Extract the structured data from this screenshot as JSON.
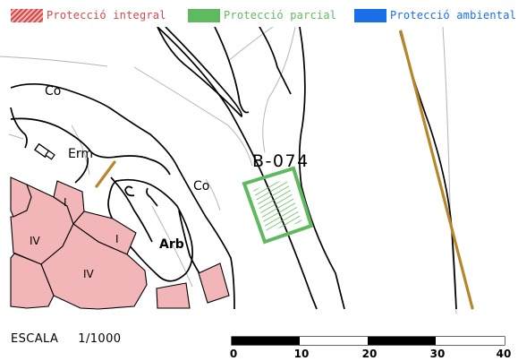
{
  "legend": {
    "items": [
      {
        "label": "Protecció integral",
        "color": "#d04a4a"
      },
      {
        "label": "Protecció parcial",
        "color": "#5fba5f"
      },
      {
        "label": "Protecció ambiental",
        "color": "#1a6ee8"
      }
    ]
  },
  "map": {
    "labels": {
      "co_top": "Co",
      "erm": "Erm",
      "co_mid": "Co",
      "arb": "Arb",
      "feature_id": "B-074",
      "block_iv_1": "IV",
      "block_i_1": "I",
      "block_i_2": "I",
      "block_iv_2": "IV"
    },
    "colors": {
      "building_fill": "#f2b6b8",
      "partial_protection": "#5fba5f",
      "road_line": "#000000",
      "boundary_line": "#b8862a"
    }
  },
  "scale": {
    "label": "ESCALA",
    "ratio": "1/1000",
    "ticks": [
      "0",
      "10",
      "20",
      "30",
      "40"
    ]
  }
}
